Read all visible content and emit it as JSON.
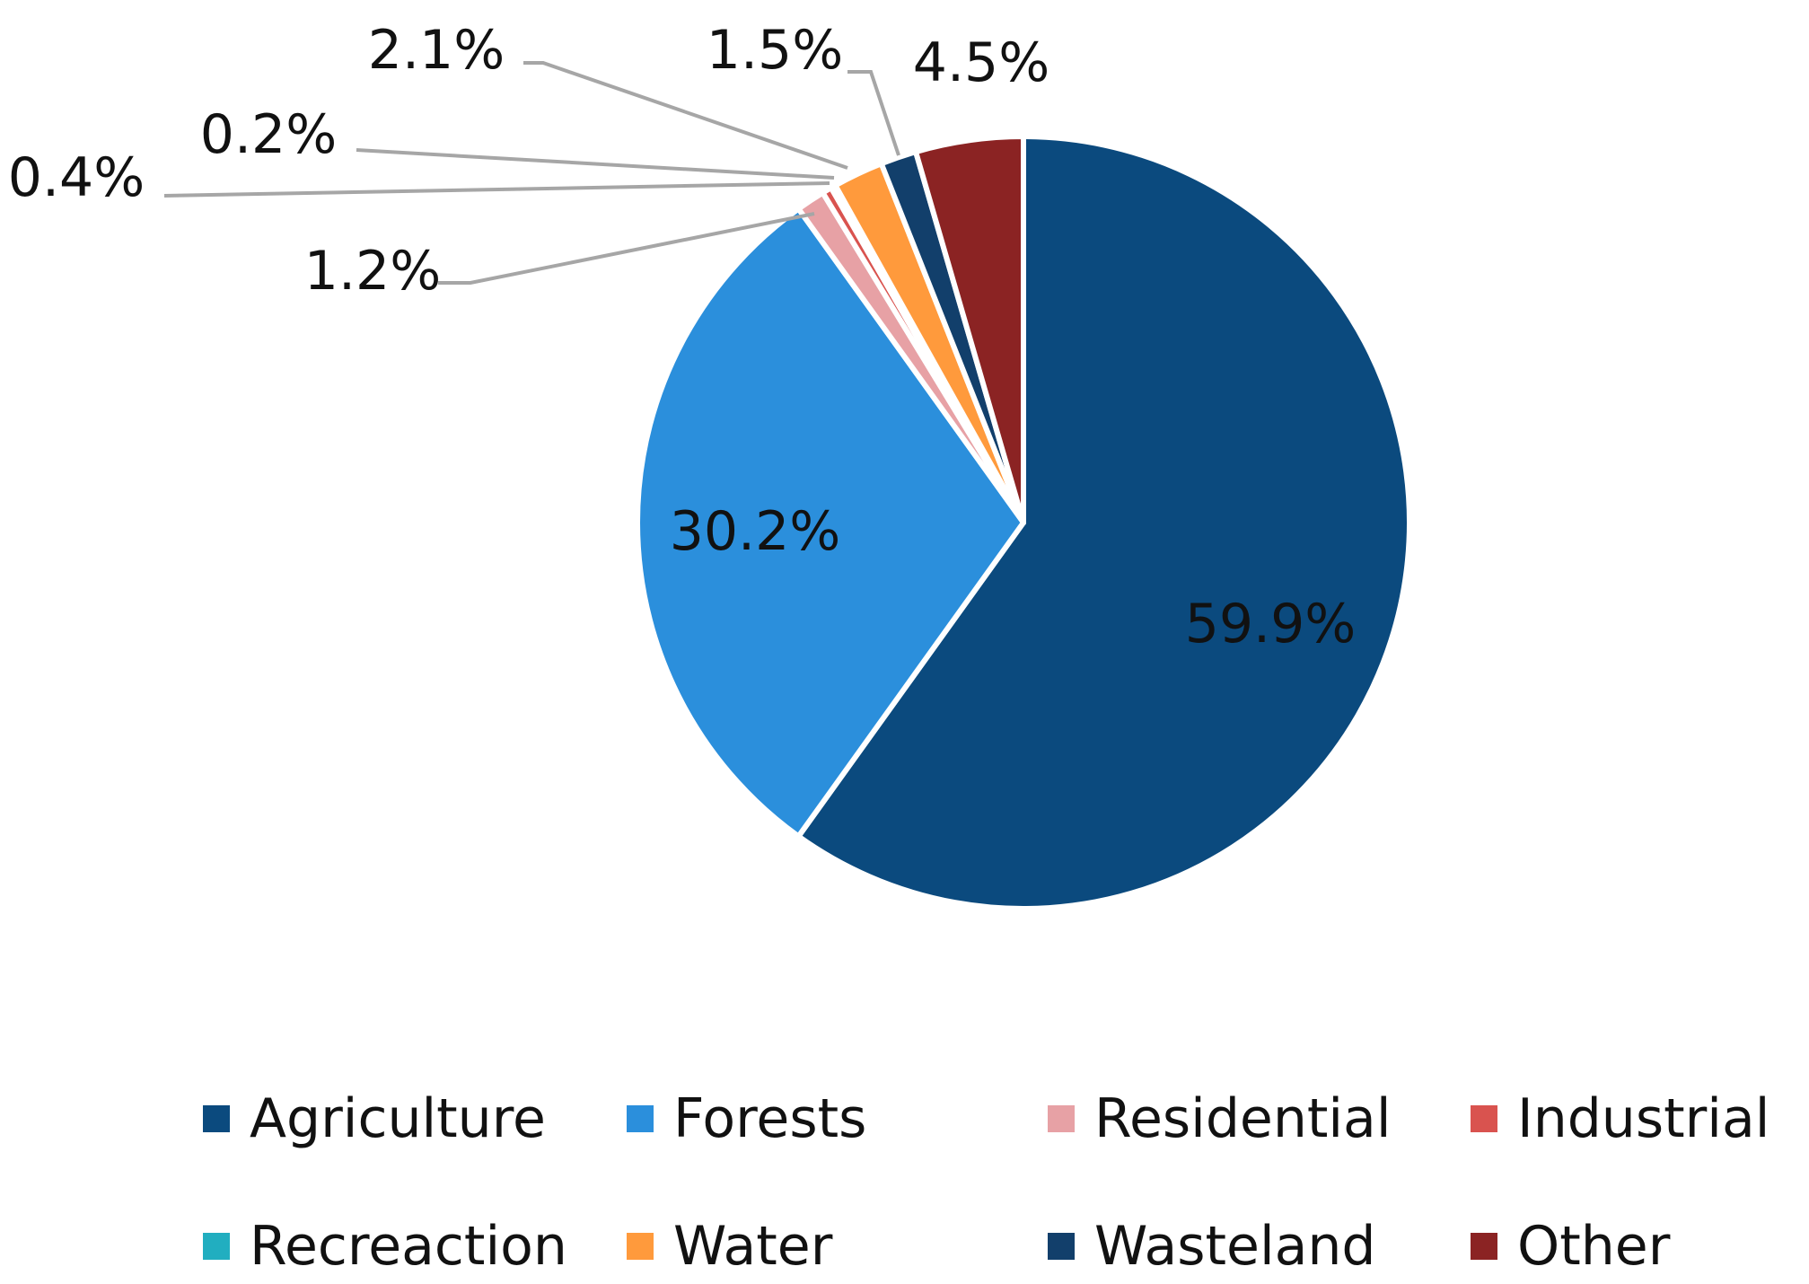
{
  "chart_data": {
    "type": "pie",
    "title": "",
    "categories": [
      "Agriculture",
      "Forests",
      "Residential",
      "Industrial",
      "Recreaction",
      "Water",
      "Wasteland",
      "Other"
    ],
    "values": [
      59.9,
      30.2,
      1.2,
      0.4,
      0.2,
      2.1,
      1.5,
      4.5
    ],
    "labels": [
      "59.9%",
      "30.2%",
      "1.2%",
      "0.4%",
      "0.2%",
      "2.1%",
      "1.5%",
      "4.5%"
    ],
    "colors": [
      "#0b4a7e",
      "#2b8fdc",
      "#e7a1a5",
      "#d9534f",
      "#21aec0",
      "#ff9a3c",
      "#123f6b",
      "#8b2323"
    ],
    "legend_position": "bottom"
  }
}
